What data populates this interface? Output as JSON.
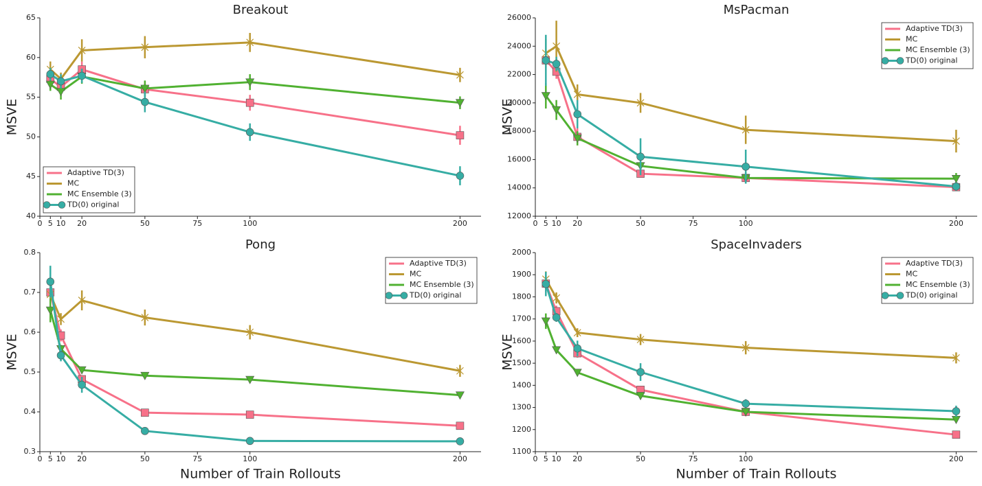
{
  "chart_data": [
    {
      "type": "line",
      "title": "Breakout",
      "ylabel": "MSVE",
      "x": [
        5,
        10,
        20,
        50,
        100,
        200
      ],
      "xlim": [
        0,
        210
      ],
      "xticks": [
        0,
        5,
        10,
        20,
        50,
        75,
        100,
        200
      ],
      "ylim": [
        40,
        65
      ],
      "yticks": [
        40,
        45,
        50,
        55,
        60,
        65
      ],
      "legend": "lower left",
      "series": [
        {
          "name": "Adaptive TD(3)",
          "color": "#f77189",
          "marker": "s",
          "values": [
            57.3,
            56.3,
            58.5,
            56.0,
            54.3,
            50.2
          ],
          "errors": [
            1.0,
            1.0,
            1.0,
            1.0,
            1.0,
            1.2
          ]
        },
        {
          "name": "MC",
          "color": "#bb9832",
          "marker": "x",
          "values": [
            58.5,
            57.3,
            60.9,
            61.3,
            61.9,
            57.8
          ],
          "errors": [
            1.0,
            0.8,
            1.4,
            1.4,
            1.2,
            0.9
          ]
        },
        {
          "name": "MC Ensemble (3)",
          "color": "#50b131",
          "marker": "v",
          "values": [
            56.6,
            55.7,
            57.6,
            56.1,
            56.9,
            54.3
          ],
          "errors": [
            0.8,
            1.0,
            0.9,
            1.0,
            1.0,
            0.8
          ]
        },
        {
          "name": "TD(0) original",
          "color": "#36ada4",
          "marker": "o",
          "values": [
            57.9,
            57.0,
            57.7,
            54.4,
            50.6,
            45.1
          ],
          "errors": [
            0.8,
            0.9,
            0.9,
            1.3,
            1.1,
            1.2
          ]
        }
      ]
    },
    {
      "type": "line",
      "title": "MsPacman",
      "ylabel": "MSVE",
      "x": [
        5,
        10,
        20,
        50,
        100,
        200
      ],
      "xlim": [
        0,
        210
      ],
      "xticks": [
        0,
        5,
        10,
        20,
        50,
        75,
        100,
        200
      ],
      "ylim": [
        12000,
        26000
      ],
      "yticks": [
        12000,
        14000,
        16000,
        18000,
        20000,
        22000,
        24000,
        26000
      ],
      "legend": "upper right",
      "series": [
        {
          "name": "Adaptive TD(3)",
          "color": "#f77189",
          "marker": "s",
          "values": [
            23000,
            22200,
            17600,
            15000,
            14700,
            14050
          ],
          "errors": [
            700,
            500,
            600,
            200,
            300,
            200
          ]
        },
        {
          "name": "MC",
          "color": "#bb9832",
          "marker": "x",
          "values": [
            23500,
            24000,
            20600,
            20000,
            18100,
            17300
          ],
          "errors": [
            1000,
            1800,
            700,
            700,
            1000,
            800
          ]
        },
        {
          "name": "MC Ensemble (3)",
          "color": "#50b131",
          "marker": "v",
          "values": [
            20500,
            19500,
            17500,
            15550,
            14700,
            14650
          ],
          "errors": [
            900,
            700,
            500,
            300,
            400,
            400
          ]
        },
        {
          "name": "TD(0) original",
          "color": "#36ada4",
          "marker": "o",
          "values": [
            23000,
            22750,
            19200,
            16200,
            15500,
            14100
          ],
          "errors": [
            1800,
            500,
            1000,
            1300,
            1200,
            300
          ]
        }
      ]
    },
    {
      "type": "line",
      "title": "Pong",
      "ylabel": "MSVE",
      "xlabel": "Number of Train Rollouts",
      "x": [
        5,
        10,
        20,
        50,
        100,
        200
      ],
      "xlim": [
        0,
        210
      ],
      "xticks": [
        0,
        5,
        10,
        20,
        50,
        75,
        100,
        200
      ],
      "ylim": [
        0.3,
        0.8
      ],
      "yticks": [
        0.3,
        0.4,
        0.5,
        0.6,
        0.7,
        0.8
      ],
      "legend": "upper right",
      "series": [
        {
          "name": "Adaptive TD(3)",
          "color": "#f77189",
          "marker": "s",
          "values": [
            0.7,
            0.592,
            0.482,
            0.398,
            0.393,
            0.365
          ],
          "errors": [
            0.02,
            0.015,
            0.01,
            0.005,
            0.005,
            0.005
          ]
        },
        {
          "name": "MC",
          "color": "#bb9832",
          "marker": "x",
          "values": [
            0.695,
            0.633,
            0.68,
            0.637,
            0.6,
            0.503
          ],
          "errors": [
            0.02,
            0.015,
            0.025,
            0.02,
            0.018,
            0.015
          ]
        },
        {
          "name": "MC Ensemble (3)",
          "color": "#50b131",
          "marker": "v",
          "values": [
            0.655,
            0.558,
            0.505,
            0.491,
            0.481,
            0.442
          ],
          "errors": [
            0.03,
            0.01,
            0.005,
            0.005,
            0.008,
            0.005
          ]
        },
        {
          "name": "TD(0) original",
          "color": "#36ada4",
          "marker": "o",
          "values": [
            0.727,
            0.542,
            0.468,
            0.352,
            0.327,
            0.326
          ],
          "errors": [
            0.04,
            0.015,
            0.02,
            0.004,
            0.004,
            0.004
          ]
        }
      ]
    },
    {
      "type": "line",
      "title": "SpaceInvaders",
      "ylabel": "MSVE",
      "xlabel": "Number of Train Rollouts",
      "x": [
        5,
        10,
        20,
        50,
        100,
        200
      ],
      "xlim": [
        0,
        210
      ],
      "xticks": [
        0,
        5,
        10,
        20,
        50,
        75,
        100,
        200
      ],
      "ylim": [
        1100,
        2000
      ],
      "yticks": [
        1100,
        1200,
        1300,
        1400,
        1500,
        1600,
        1700,
        1800,
        1900,
        2000
      ],
      "legend": "upper right",
      "series": [
        {
          "name": "Adaptive TD(3)",
          "color": "#f77189",
          "marker": "s",
          "values": [
            1860,
            1735,
            1545,
            1380,
            1280,
            1177
          ],
          "errors": [
            40,
            25,
            20,
            15,
            20,
            10
          ]
        },
        {
          "name": "MC",
          "color": "#bb9832",
          "marker": "x",
          "values": [
            1880,
            1795,
            1638,
            1607,
            1570,
            1524
          ],
          "errors": [
            35,
            25,
            20,
            25,
            30,
            25
          ]
        },
        {
          "name": "MC Ensemble (3)",
          "color": "#50b131",
          "marker": "v",
          "values": [
            1690,
            1560,
            1458,
            1353,
            1280,
            1245
          ],
          "errors": [
            35,
            15,
            10,
            10,
            10,
            10
          ]
        },
        {
          "name": "TD(0) original",
          "color": "#36ada4",
          "marker": "o",
          "values": [
            1858,
            1707,
            1567,
            1460,
            1317,
            1283
          ],
          "errors": [
            55,
            20,
            35,
            40,
            20,
            25
          ]
        }
      ]
    }
  ]
}
